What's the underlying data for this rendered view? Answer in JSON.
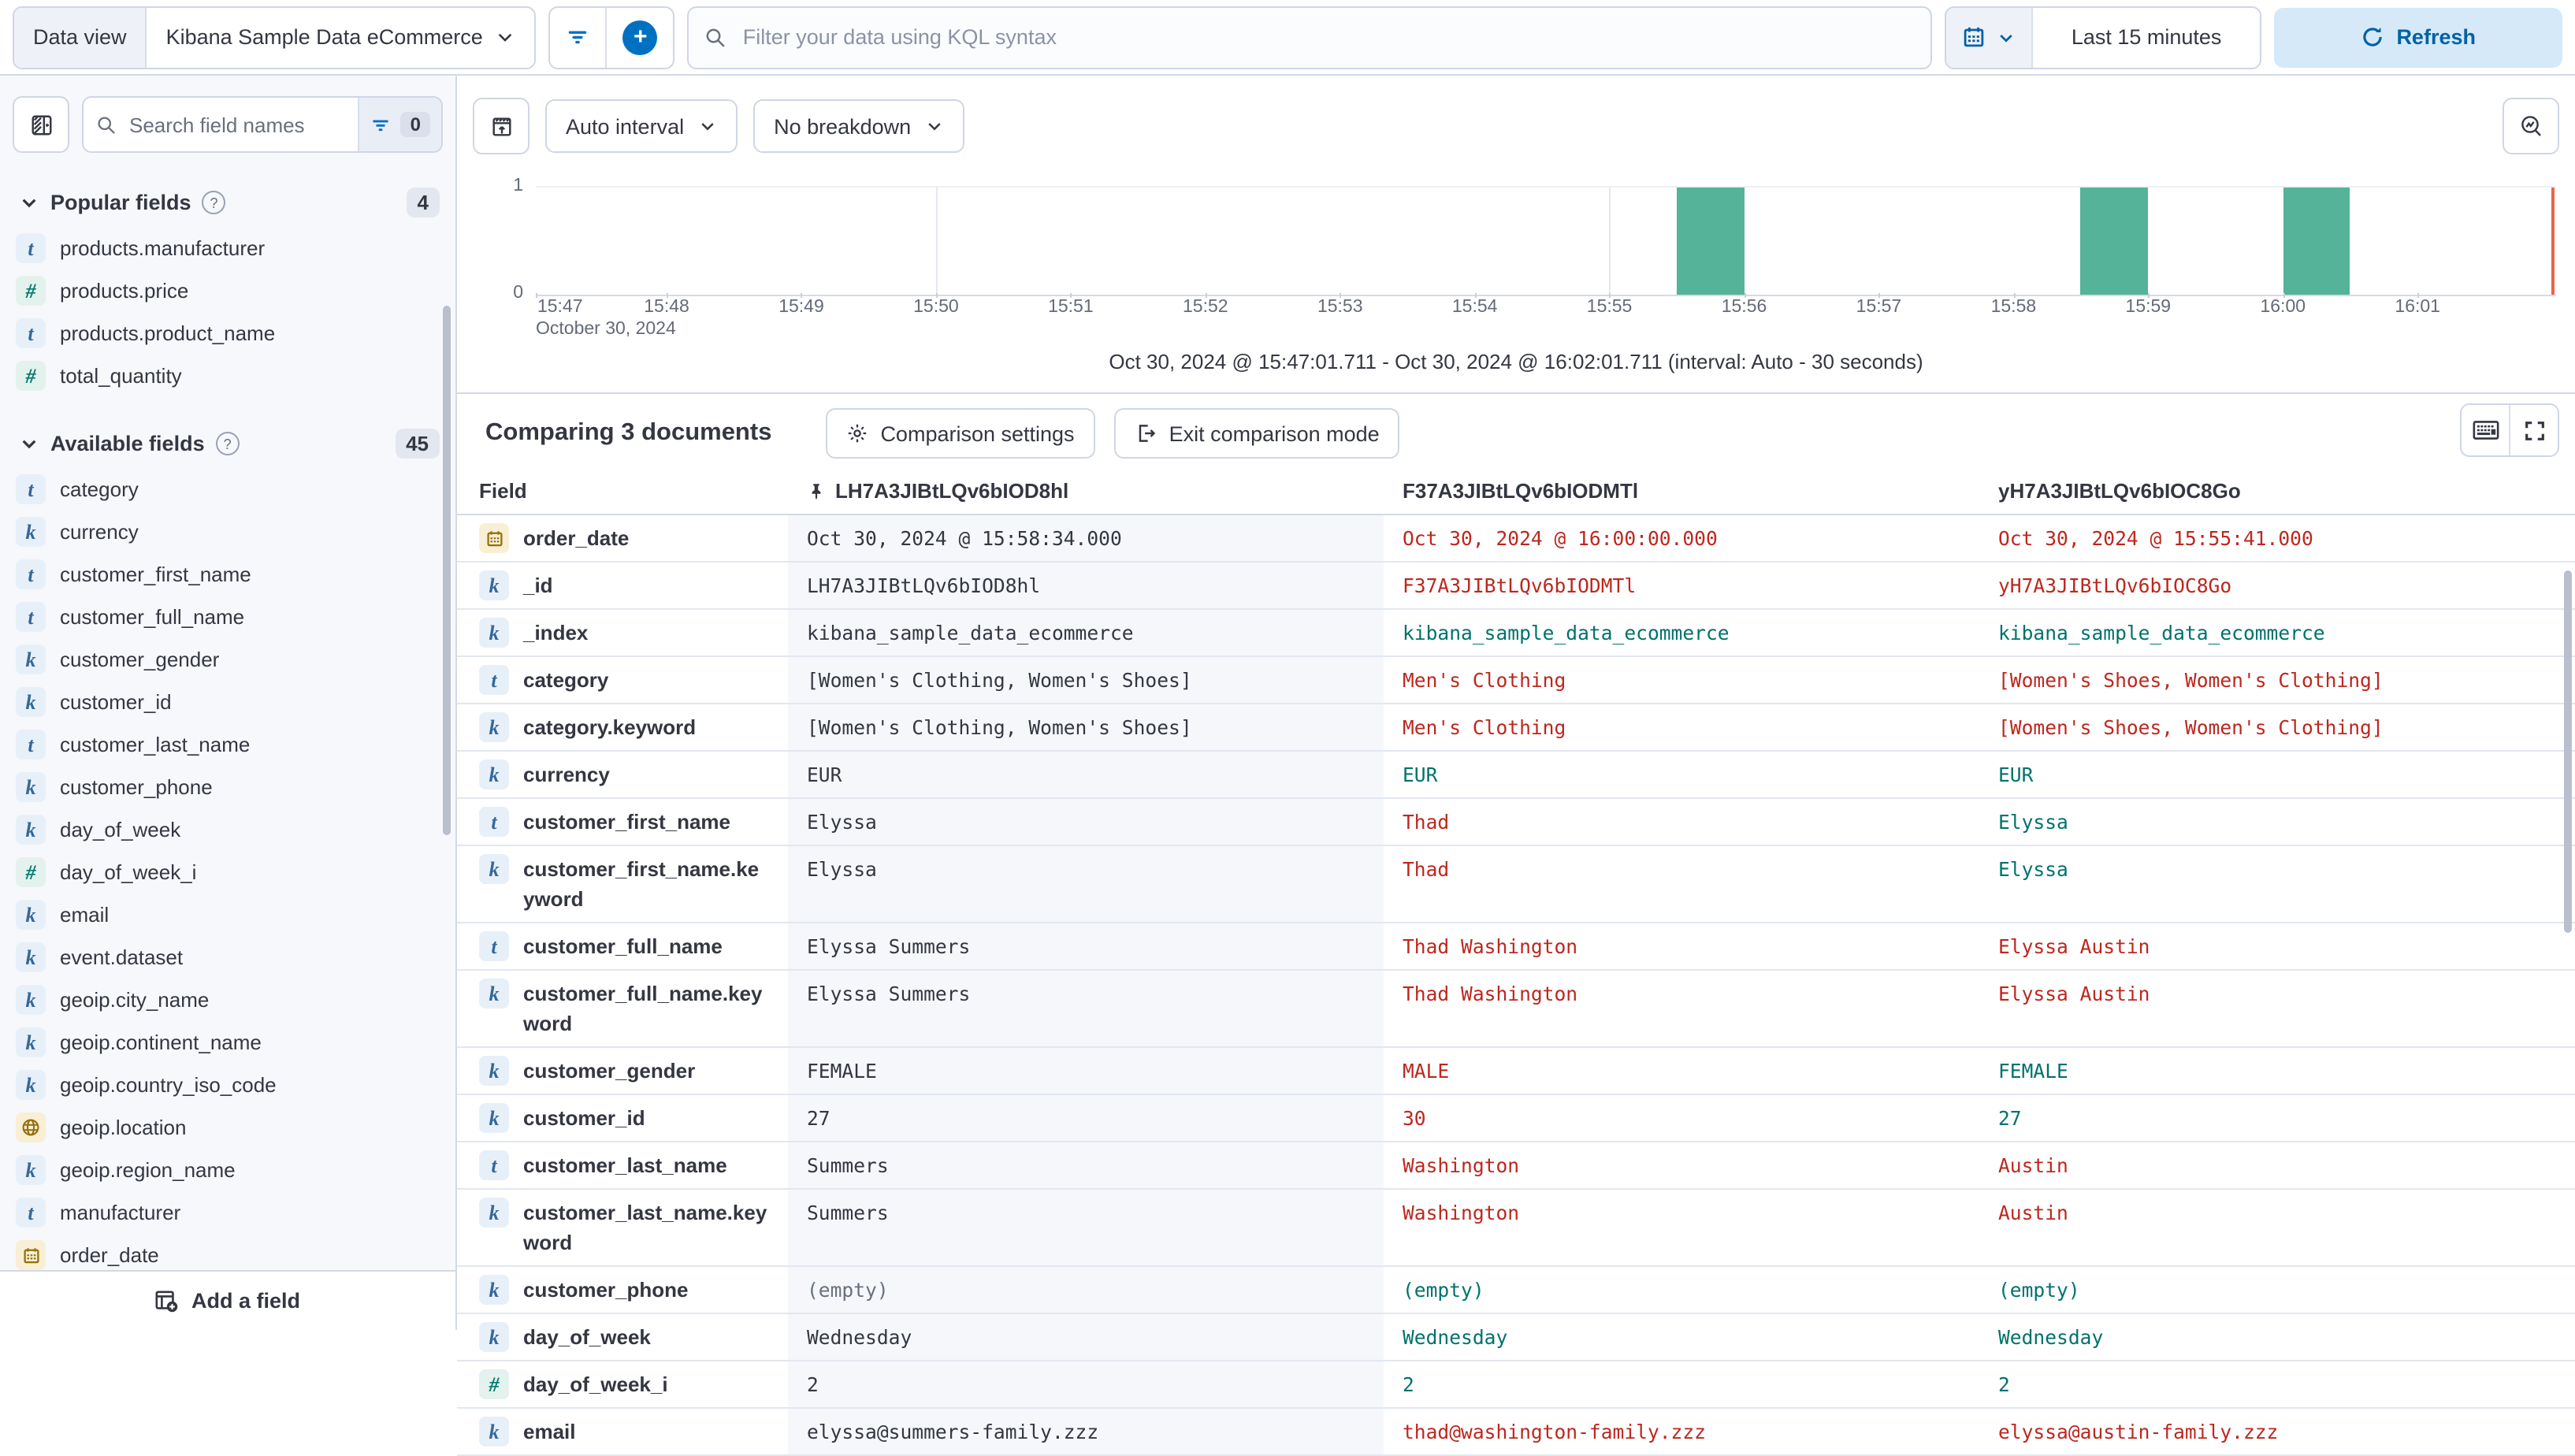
{
  "colors": {
    "accent_blue": "#0071c2",
    "link_blue": "#0061a6",
    "bar_green": "#54b399",
    "marker_red": "#e7664c",
    "diff_red": "#bd271e",
    "match_teal": "#00726b"
  },
  "topbar": {
    "data_view_label": "Data view",
    "data_view_value": "Kibana Sample Data eCommerce",
    "kql_placeholder": "Filter your data using KQL syntax",
    "time_range": "Last 15 minutes",
    "refresh_label": "Refresh"
  },
  "sidebar": {
    "search_placeholder": "Search field names",
    "filter_count": "0",
    "sections": [
      {
        "label": "Popular fields",
        "count": "4",
        "items": [
          {
            "type": "text",
            "name": "products.manufacturer"
          },
          {
            "type": "number",
            "name": "products.price"
          },
          {
            "type": "text",
            "name": "products.product_name"
          },
          {
            "type": "number",
            "name": "total_quantity"
          }
        ]
      },
      {
        "label": "Available fields",
        "count": "45",
        "items": [
          {
            "type": "text",
            "name": "category"
          },
          {
            "type": "keyword",
            "name": "currency"
          },
          {
            "type": "text",
            "name": "customer_first_name"
          },
          {
            "type": "text",
            "name": "customer_full_name"
          },
          {
            "type": "keyword",
            "name": "customer_gender"
          },
          {
            "type": "keyword",
            "name": "customer_id"
          },
          {
            "type": "text",
            "name": "customer_last_name"
          },
          {
            "type": "keyword",
            "name": "customer_phone"
          },
          {
            "type": "keyword",
            "name": "day_of_week"
          },
          {
            "type": "number",
            "name": "day_of_week_i"
          },
          {
            "type": "keyword",
            "name": "email"
          },
          {
            "type": "keyword",
            "name": "event.dataset"
          },
          {
            "type": "keyword",
            "name": "geoip.city_name"
          },
          {
            "type": "keyword",
            "name": "geoip.continent_name"
          },
          {
            "type": "keyword",
            "name": "geoip.country_iso_code"
          },
          {
            "type": "geo",
            "name": "geoip.location"
          },
          {
            "type": "keyword",
            "name": "geoip.region_name"
          },
          {
            "type": "text",
            "name": "manufacturer"
          },
          {
            "type": "date",
            "name": "order_date"
          }
        ]
      }
    ],
    "add_field_label": "Add a field"
  },
  "chart": {
    "interval_button": "Auto interval",
    "breakdown_button": "No breakdown",
    "y_ticks": [
      "1",
      "0"
    ],
    "x_ticks": [
      "15:47",
      "15:48",
      "15:49",
      "15:50",
      "15:51",
      "15:52",
      "15:53",
      "15:54",
      "15:55",
      "15:56",
      "15:57",
      "15:58",
      "15:59",
      "16:00",
      "16:01"
    ],
    "x_axis_date": "October 30, 2024",
    "time_note": "Oct 30, 2024 @ 15:47:01.711 - Oct 30, 2024 @ 16:02:01.711 (interval: Auto - 30 seconds)",
    "chart_data": {
      "type": "bar",
      "start": "15:47:01.711",
      "end": "16:02:01.711",
      "interval_seconds": 30,
      "ylim": [
        0,
        1
      ],
      "gridlines": [
        "15:50",
        "15:55",
        "16:00"
      ],
      "bars": [
        {
          "time": "15:55:30",
          "count": 1
        },
        {
          "time": "15:58:30",
          "count": 1
        },
        {
          "time": "16:00:00",
          "count": 1
        }
      ],
      "current_time_marker_percent": 99.8
    }
  },
  "comparison": {
    "title": "Comparing 3 documents",
    "settings_label": "Comparison settings",
    "exit_label": "Exit comparison mode"
  },
  "table": {
    "field_header": "Field",
    "columns": [
      {
        "id": "LH7A3JIBtLQv6bIOD8hl",
        "pinned": true
      },
      {
        "id": "F37A3JIBtLQv6bIODMTl",
        "pinned": false
      },
      {
        "id": "yH7A3JIBtLQv6bIOC8Go",
        "pinned": false
      }
    ],
    "rows": [
      {
        "field": "order_date",
        "type": "date",
        "cells": [
          {
            "text": "Oct 30, 2024 @ 15:58:34.000",
            "status": "base"
          },
          {
            "text": "Oct 30, 2024 @ 16:00:00.000",
            "status": "diff"
          },
          {
            "text": "Oct 30, 2024 @ 15:55:41.000",
            "status": "diff"
          }
        ]
      },
      {
        "field": "_id",
        "type": "keyword",
        "cells": [
          {
            "text": "LH7A3JIBtLQv6bIOD8hl",
            "status": "base"
          },
          {
            "text": "F37A3JIBtLQv6bIODMTl",
            "status": "diff"
          },
          {
            "text": "yH7A3JIBtLQv6bIOC8Go",
            "status": "diff"
          }
        ]
      },
      {
        "field": "_index",
        "type": "keyword",
        "cells": [
          {
            "text": "kibana_sample_data_ecommerce",
            "status": "base"
          },
          {
            "text": "kibana_sample_data_ecommerce",
            "status": "match"
          },
          {
            "text": "kibana_sample_data_ecommerce",
            "status": "match"
          }
        ]
      },
      {
        "field": "category",
        "type": "text",
        "cells": [
          {
            "text": "[Women's Clothing, Women's Shoes]",
            "status": "base"
          },
          {
            "text": "Men's Clothing",
            "status": "diff"
          },
          {
            "text": "[Women's Shoes, Women's Clothing]",
            "status": "diff"
          }
        ]
      },
      {
        "field": "category.keyword",
        "type": "keyword",
        "cells": [
          {
            "text": "[Women's Clothing, Women's Shoes]",
            "status": "base"
          },
          {
            "text": "Men's Clothing",
            "status": "diff"
          },
          {
            "text": "[Women's Shoes, Women's Clothing]",
            "status": "diff"
          }
        ]
      },
      {
        "field": "currency",
        "type": "keyword",
        "cells": [
          {
            "text": "EUR",
            "status": "base"
          },
          {
            "text": "EUR",
            "status": "match"
          },
          {
            "text": "EUR",
            "status": "match"
          }
        ]
      },
      {
        "field": "customer_first_name",
        "type": "text",
        "cells": [
          {
            "text": "Elyssa",
            "status": "base"
          },
          {
            "text": "Thad",
            "status": "diff"
          },
          {
            "text": "Elyssa",
            "status": "match"
          }
        ]
      },
      {
        "field": "customer_first_name.keyword",
        "type": "keyword",
        "cells": [
          {
            "text": "Elyssa",
            "status": "base"
          },
          {
            "text": "Thad",
            "status": "diff"
          },
          {
            "text": "Elyssa",
            "status": "match"
          }
        ]
      },
      {
        "field": "customer_full_name",
        "type": "text",
        "cells": [
          {
            "text": "Elyssa Summers",
            "status": "base"
          },
          {
            "text": "Thad Washington",
            "status": "diff"
          },
          {
            "text": "Elyssa Austin",
            "status": "diff"
          }
        ]
      },
      {
        "field": "customer_full_name.keyword",
        "type": "keyword",
        "cells": [
          {
            "text": "Elyssa Summers",
            "status": "base"
          },
          {
            "text": "Thad Washington",
            "status": "diff"
          },
          {
            "text": "Elyssa Austin",
            "status": "diff"
          }
        ]
      },
      {
        "field": "customer_gender",
        "type": "keyword",
        "cells": [
          {
            "text": "FEMALE",
            "status": "base"
          },
          {
            "text": "MALE",
            "status": "diff"
          },
          {
            "text": "FEMALE",
            "status": "match"
          }
        ]
      },
      {
        "field": "customer_id",
        "type": "keyword",
        "cells": [
          {
            "text": "27",
            "status": "base"
          },
          {
            "text": "30",
            "status": "diff"
          },
          {
            "text": "27",
            "status": "match"
          }
        ]
      },
      {
        "field": "customer_last_name",
        "type": "text",
        "cells": [
          {
            "text": "Summers",
            "status": "base"
          },
          {
            "text": "Washington",
            "status": "diff"
          },
          {
            "text": "Austin",
            "status": "diff"
          }
        ]
      },
      {
        "field": "customer_last_name.keyword",
        "type": "keyword",
        "cells": [
          {
            "text": "Summers",
            "status": "base"
          },
          {
            "text": "Washington",
            "status": "diff"
          },
          {
            "text": "Austin",
            "status": "diff"
          }
        ]
      },
      {
        "field": "customer_phone",
        "type": "keyword",
        "cells": [
          {
            "text": "(empty)",
            "status": "muted"
          },
          {
            "text": "(empty)",
            "status": "match"
          },
          {
            "text": "(empty)",
            "status": "match"
          }
        ]
      },
      {
        "field": "day_of_week",
        "type": "keyword",
        "cells": [
          {
            "text": "Wednesday",
            "status": "base"
          },
          {
            "text": "Wednesday",
            "status": "match"
          },
          {
            "text": "Wednesday",
            "status": "match"
          }
        ]
      },
      {
        "field": "day_of_week_i",
        "type": "number",
        "cells": [
          {
            "text": "2",
            "status": "base"
          },
          {
            "text": "2",
            "status": "match"
          },
          {
            "text": "2",
            "status": "match"
          }
        ]
      },
      {
        "field": "email",
        "type": "keyword",
        "cells": [
          {
            "text": "elyssa@summers-family.zzz",
            "status": "base"
          },
          {
            "text": "thad@washington-family.zzz",
            "status": "diff"
          },
          {
            "text": "elyssa@austin-family.zzz",
            "status": "diff"
          }
        ]
      }
    ]
  }
}
